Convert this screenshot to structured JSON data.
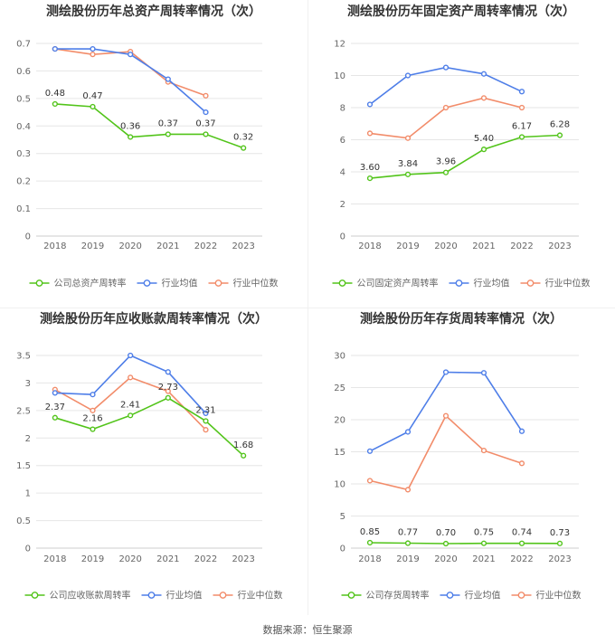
{
  "source": "数据来源：恒生聚源",
  "legend_labels": {
    "industry_avg": "行业均值",
    "industry_median": "行业中位数"
  },
  "colors": {
    "company": "#52c41a",
    "industry_avg": "#4e7ee8",
    "industry_median": "#f28c6a",
    "axis_text": "#666666",
    "grid": "#e6e6e6",
    "title": "#333333"
  },
  "chart_data": [
    {
      "type": "line",
      "title": "测绘股份历年总资产周转率情况（次）",
      "categories": [
        "2018",
        "2019",
        "2020",
        "2021",
        "2022",
        "2023"
      ],
      "ylim": [
        0,
        0.7
      ],
      "yticks": [
        "0",
        "0.1",
        "0.2",
        "0.3",
        "0.4",
        "0.5",
        "0.6",
        "0.7"
      ],
      "legend": "bottom",
      "series": [
        {
          "name": "公司总资产周转率",
          "key": "company",
          "values": [
            0.48,
            0.47,
            0.36,
            0.37,
            0.37,
            0.32
          ],
          "labels": [
            "0.48",
            "0.47",
            "0.36",
            "0.37",
            "0.37",
            "0.32"
          ]
        },
        {
          "name": "行业均值",
          "key": "industry_avg",
          "values": [
            0.68,
            0.68,
            0.66,
            0.57,
            0.45,
            null
          ]
        },
        {
          "name": "行业中位数",
          "key": "industry_median",
          "values": [
            0.68,
            0.66,
            0.67,
            0.56,
            0.51,
            null
          ]
        }
      ]
    },
    {
      "type": "line",
      "title": "测绘股份历年固定资产周转率情况（次）",
      "categories": [
        "2018",
        "2019",
        "2020",
        "2021",
        "2022",
        "2023"
      ],
      "ylim": [
        0,
        12
      ],
      "yticks": [
        "0",
        "2",
        "4",
        "6",
        "8",
        "10",
        "12"
      ],
      "legend": "bottom",
      "series": [
        {
          "name": "公司固定资产周转率",
          "key": "company",
          "values": [
            3.6,
            3.84,
            3.96,
            5.4,
            6.17,
            6.28
          ],
          "labels": [
            "3.60",
            "3.84",
            "3.96",
            "5.40",
            "6.17",
            "6.28"
          ]
        },
        {
          "name": "行业均值",
          "key": "industry_avg",
          "values": [
            8.2,
            10.0,
            10.5,
            10.1,
            9.0,
            null
          ]
        },
        {
          "name": "行业中位数",
          "key": "industry_median",
          "values": [
            6.4,
            6.1,
            8.0,
            8.6,
            8.0,
            null
          ]
        }
      ]
    },
    {
      "type": "line",
      "title": "测绘股份历年应收账款周转率情况（次）",
      "categories": [
        "2018",
        "2019",
        "2020",
        "2021",
        "2022",
        "2023"
      ],
      "ylim": [
        0,
        3.5
      ],
      "yticks": [
        "0",
        "0.5",
        "1",
        "1.5",
        "2",
        "2.5",
        "3",
        "3.5"
      ],
      "legend": "bottom",
      "series": [
        {
          "name": "公司应收账款周转率",
          "key": "company",
          "values": [
            2.37,
            2.16,
            2.41,
            2.73,
            2.31,
            1.68
          ],
          "labels": [
            "2.37",
            "2.16",
            "2.41",
            "2.73",
            "2.31",
            "1.68"
          ]
        },
        {
          "name": "行业均值",
          "key": "industry_avg",
          "values": [
            2.82,
            2.79,
            3.5,
            3.2,
            2.45,
            null
          ]
        },
        {
          "name": "行业中位数",
          "key": "industry_median",
          "values": [
            2.88,
            2.5,
            3.1,
            2.85,
            2.15,
            null
          ]
        }
      ]
    },
    {
      "type": "line",
      "title": "测绘股份历年存货周转率情况（次）",
      "categories": [
        "2018",
        "2019",
        "2020",
        "2021",
        "2022",
        "2023"
      ],
      "ylim": [
        0,
        30
      ],
      "yticks": [
        "0",
        "5",
        "10",
        "15",
        "20",
        "25",
        "30"
      ],
      "legend": "bottom",
      "series": [
        {
          "name": "公司存货周转率",
          "key": "company",
          "values": [
            0.85,
            0.77,
            0.7,
            0.75,
            0.74,
            0.73
          ],
          "labels": [
            "0.85",
            "0.77",
            "0.70",
            "0.75",
            "0.74",
            "0.73"
          ]
        },
        {
          "name": "行业均值",
          "key": "industry_avg",
          "values": [
            15.1,
            18.1,
            27.4,
            27.3,
            18.2,
            null
          ]
        },
        {
          "name": "行业中位数",
          "key": "industry_median",
          "values": [
            10.5,
            9.1,
            20.6,
            15.2,
            13.2,
            null
          ]
        }
      ]
    }
  ]
}
